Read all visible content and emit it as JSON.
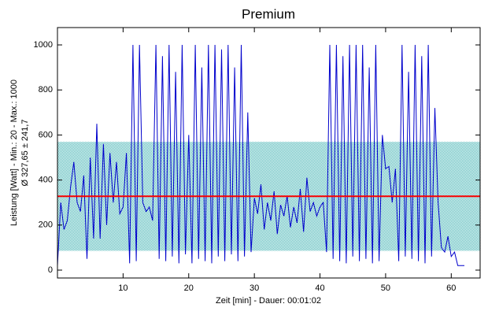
{
  "chart_data": {
    "type": "line",
    "title": "Premium",
    "xlabel": "Zeit [min] - Dauer: 00:01:02",
    "ylabel": [
      "Leistung [Watt] - Min.: 20 - Max.: 1000",
      "Ø 327,65 ± 241,7"
    ],
    "mean": 327.65,
    "std": 241.7,
    "mean_color": "#ff0000",
    "band_color": "#7fcfcf",
    "color": "#0000cc",
    "xlim": [
      0,
      64.4
    ],
    "ylim": [
      -35,
      1077
    ],
    "xticks": [
      10,
      20,
      30,
      40,
      50,
      60
    ],
    "yticks": [
      0,
      200,
      400,
      600,
      800,
      1000
    ],
    "x": [
      0,
      0.5,
      1,
      1.5,
      2,
      2.5,
      3,
      3.5,
      4,
      4.5,
      5,
      5.5,
      6,
      6.5,
      7,
      7.5,
      8,
      8.5,
      9,
      9.5,
      10,
      10.5,
      11,
      11.5,
      12,
      12.5,
      13,
      13.5,
      14,
      14.5,
      15,
      15.5,
      16,
      16.5,
      17,
      17.5,
      18,
      18.5,
      19,
      19.5,
      20,
      20.5,
      21,
      21.5,
      22,
      22.5,
      23,
      23.5,
      24,
      24.5,
      25,
      25.5,
      26,
      26.5,
      27,
      27.5,
      28,
      28.5,
      29,
      29.5,
      30,
      30.5,
      31,
      31.5,
      32,
      32.5,
      33,
      33.5,
      34,
      34.5,
      35,
      35.5,
      36,
      36.5,
      37,
      37.5,
      38,
      38.5,
      39,
      39.5,
      40,
      40.5,
      41,
      41.5,
      42,
      42.5,
      43,
      43.5,
      44,
      44.5,
      45,
      45.5,
      46,
      46.5,
      47,
      47.5,
      48,
      48.5,
      49,
      49.5,
      50,
      50.5,
      51,
      51.5,
      52,
      52.5,
      53,
      53.5,
      54,
      54.5,
      55,
      55.5,
      56,
      56.5,
      57,
      57.5,
      58,
      58.5,
      59,
      59.5,
      60,
      60.5,
      61,
      61.5,
      62
    ],
    "values": [
      20,
      300,
      180,
      220,
      370,
      480,
      300,
      260,
      420,
      50,
      500,
      140,
      650,
      140,
      560,
      200,
      520,
      300,
      480,
      250,
      280,
      520,
      30,
      1000,
      40,
      1000,
      300,
      260,
      280,
      220,
      1000,
      50,
      950,
      40,
      1000,
      60,
      880,
      30,
      1000,
      70,
      600,
      30,
      1000,
      50,
      900,
      40,
      1000,
      30,
      1000,
      60,
      980,
      40,
      1000,
      70,
      900,
      40,
      1000,
      60,
      700,
      80,
      320,
      250,
      380,
      180,
      300,
      220,
      350,
      160,
      290,
      240,
      330,
      190,
      280,
      210,
      360,
      170,
      410,
      260,
      300,
      240,
      280,
      300,
      80,
      1000,
      50,
      1000,
      40,
      950,
      30,
      1000,
      60,
      1000,
      40,
      1000,
      50,
      900,
      30,
      1000,
      40,
      600,
      450,
      460,
      300,
      450,
      40,
      1000,
      60,
      880,
      50,
      1000,
      40,
      950,
      30,
      1000,
      60,
      720,
      300,
      100,
      80,
      150,
      60,
      80,
      20,
      20,
      20
    ]
  }
}
